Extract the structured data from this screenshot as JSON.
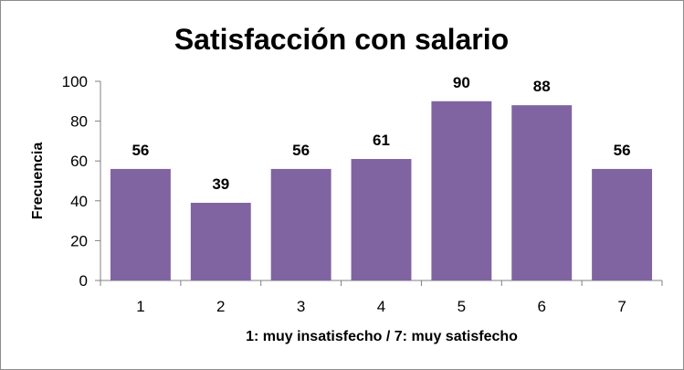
{
  "chart_data": {
    "type": "bar",
    "title": "Satisfacción con salario",
    "xlabel": "1: muy insatisfecho / 7: muy satisfecho",
    "ylabel": "Frecuencia",
    "categories": [
      "1",
      "2",
      "3",
      "4",
      "5",
      "6",
      "7"
    ],
    "values": [
      56,
      39,
      56,
      61,
      90,
      88,
      56
    ],
    "ylim": [
      0,
      100
    ],
    "yticks": [
      "0",
      "20",
      "40",
      "60",
      "80",
      "100"
    ],
    "grid": false,
    "bar_color": "#8064A2",
    "data_labels": true
  }
}
